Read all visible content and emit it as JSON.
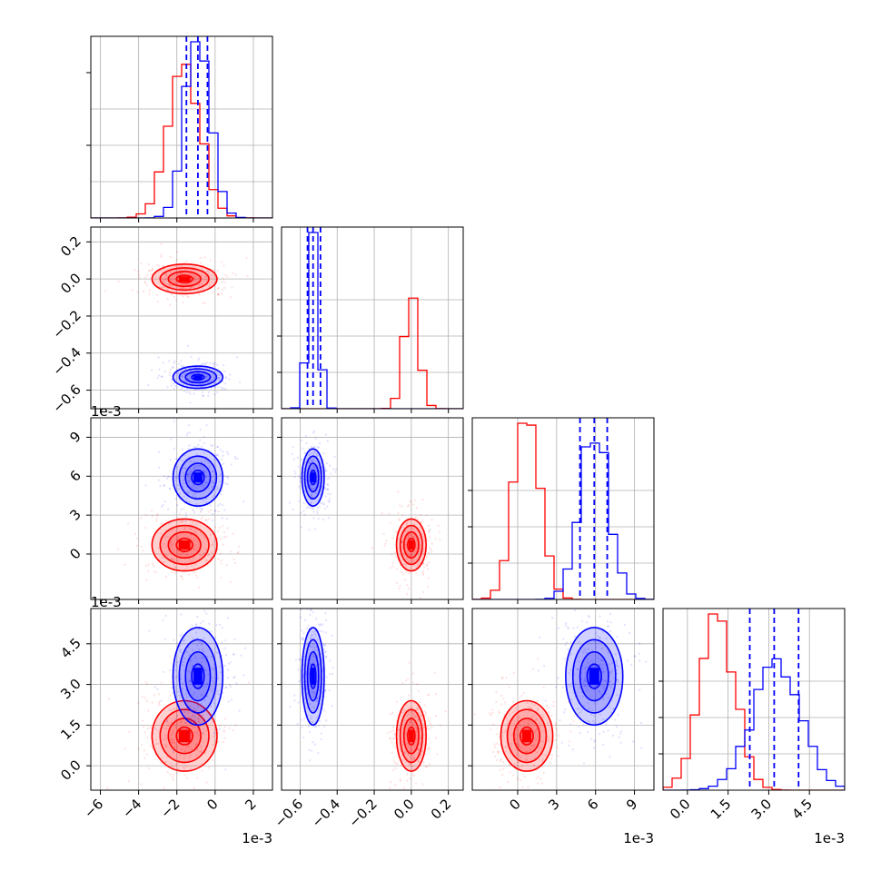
{
  "chart_data": {
    "type": "corner",
    "parameters": [
      {
        "scale_label": "1e-3",
        "ticks": [
          -6,
          -4,
          -2,
          0,
          2
        ],
        "tick_labels": [
          "−6",
          "−4",
          "−2",
          "0",
          "2"
        ],
        "range": [
          -6.5,
          3.0
        ]
      },
      {
        "scale_label": "",
        "ticks": [
          -0.6,
          -0.4,
          -0.2,
          0.0,
          0.2
        ],
        "tick_labels": [
          "−0.6",
          "−0.4",
          "−0.2",
          "0.0",
          "0.2"
        ],
        "range": [
          -0.7,
          0.28
        ]
      },
      {
        "scale_label": "1e-3",
        "ticks": [
          0,
          3,
          6,
          9
        ],
        "tick_labels": [
          "0",
          "3",
          "6",
          "9"
        ],
        "range": [
          -3.5,
          10.5
        ]
      },
      {
        "scale_label": "1e-3",
        "ticks": [
          0.0,
          1.5,
          3.0,
          4.5
        ],
        "tick_labels": [
          "0.0",
          "1.5",
          "3.0",
          "4.5"
        ],
        "range": [
          -0.9,
          5.8
        ]
      }
    ],
    "series": [
      {
        "color": "#ff0000",
        "means": [
          -1.6,
          0.0,
          0.7,
          1.1
        ],
        "sds": [
          0.85,
          0.04,
          1.0,
          0.65
        ]
      },
      {
        "color": "#0000ff",
        "means": [
          -0.9,
          -0.53,
          5.9,
          3.3
        ],
        "sds": [
          0.65,
          0.03,
          1.1,
          0.9
        ],
        "quantiles": [
          [
            -1.5,
            -0.9,
            -0.4
          ],
          [
            -0.56,
            -0.53,
            -0.49
          ],
          [
            4.8,
            5.9,
            6.9
          ],
          [
            2.3,
            3.2,
            4.1
          ]
        ]
      }
    ],
    "grid": true
  }
}
